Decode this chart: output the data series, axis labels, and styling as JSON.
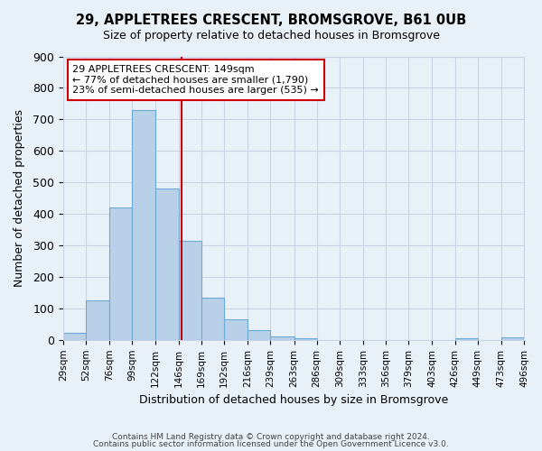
{
  "title": "29, APPLETREES CRESCENT, BROMSGROVE, B61 0UB",
  "subtitle": "Size of property relative to detached houses in Bromsgrove",
  "xlabel": "Distribution of detached houses by size in Bromsgrove",
  "ylabel": "Number of detached properties",
  "bar_color": "#b8d0e8",
  "bar_edge_color": "#6aaad4",
  "background_color": "#e8f0f8",
  "grid_color": "#c8d4e4",
  "bin_edges": [
    29,
    52,
    76,
    99,
    122,
    146,
    169,
    192,
    216,
    239,
    263,
    286,
    309,
    333,
    356,
    379,
    403,
    426,
    449,
    473,
    496
  ],
  "bin_labels": [
    "29sqm",
    "52sqm",
    "76sqm",
    "99sqm",
    "122sqm",
    "146sqm",
    "169sqm",
    "192sqm",
    "216sqm",
    "239sqm",
    "263sqm",
    "286sqm",
    "309sqm",
    "333sqm",
    "356sqm",
    "379sqm",
    "403sqm",
    "426sqm",
    "449sqm",
    "473sqm",
    "496sqm"
  ],
  "counts": [
    22,
    125,
    420,
    730,
    480,
    315,
    135,
    65,
    30,
    10,
    5,
    0,
    0,
    0,
    0,
    0,
    0,
    5,
    0,
    8
  ],
  "vline_x": 149,
  "vline_color": "#cc0000",
  "annotation_text": "29 APPLETREES CRESCENT: 149sqm\n← 77% of detached houses are smaller (1,790)\n23% of semi-detached houses are larger (535) →",
  "annotation_box_color": "#ffffff",
  "annotation_border_color": "#cc0000",
  "ylim": [
    0,
    900
  ],
  "yticks": [
    0,
    100,
    200,
    300,
    400,
    500,
    600,
    700,
    800,
    900
  ],
  "footer1": "Contains HM Land Registry data © Crown copyright and database right 2024.",
  "footer2": "Contains public sector information licensed under the Open Government Licence v3.0."
}
